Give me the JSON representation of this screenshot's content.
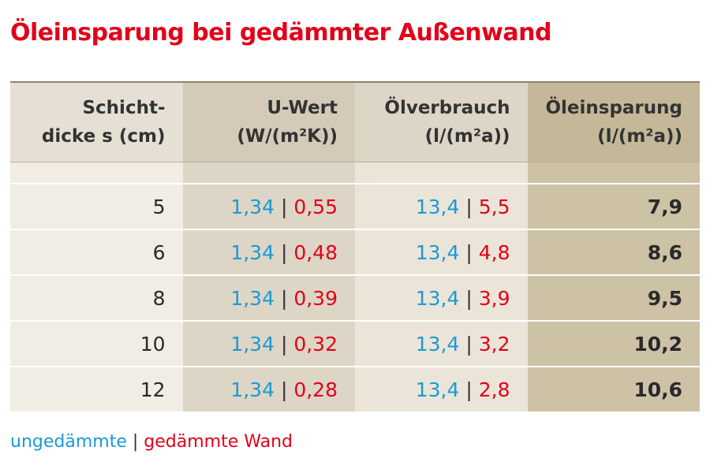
{
  "header": {
    "title": "Öleinsparung bei gedämmter Außenwand"
  },
  "table": {
    "columns": [
      [
        "Schicht-",
        "dicke s (cm)"
      ],
      [
        "U-Wert",
        "(W/(m²K))"
      ],
      [
        "Ölverbrauch",
        "(l/(m²a))"
      ],
      [
        "Öleinsparung",
        "(l/(m²a))"
      ]
    ],
    "separator": "|",
    "rows": [
      [
        5,
        {
          "before": "1,34",
          "after": "0,55"
        },
        {
          "before": "13,4",
          "after": "5,5"
        },
        "7,9"
      ],
      [
        6,
        {
          "before": "1,34",
          "after": "0,48"
        },
        {
          "before": "13,4",
          "after": "4,8"
        },
        "8,6"
      ],
      [
        8,
        {
          "before": "1,34",
          "after": "0,39"
        },
        {
          "before": "13,4",
          "after": "3,9"
        },
        "9,5"
      ],
      [
        10,
        {
          "before": "1,34",
          "after": "0,32"
        },
        {
          "before": "13,4",
          "after": "3,2"
        },
        "10,2"
      ],
      [
        12,
        {
          "before": "1,34",
          "after": "0,28"
        },
        {
          "before": "13,4",
          "after": "2,8"
        },
        "10,6"
      ]
    ]
  },
  "legend": {
    "before": "ungedämmte",
    "separator": "|",
    "after": "gedämmte Wand"
  }
}
